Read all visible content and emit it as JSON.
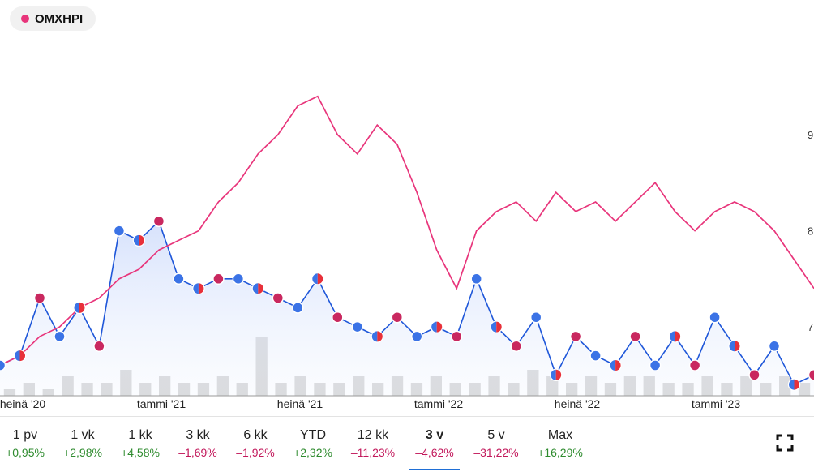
{
  "legend": {
    "label": "OMXHPI",
    "color": "#e8357b"
  },
  "colors": {
    "index_line": "#e8357b",
    "stock_line": "#1f57d9",
    "volume": "#d4d4d4",
    "dot_blue": "#3b73e6",
    "dot_red": "#e8303a",
    "dot_crimson": "#c9285f",
    "positive": "#2e8b2e",
    "negative": "#c2185b",
    "active_tab": "#1f6fd6"
  },
  "icons": {
    "fullscreen": "fullscreen-icon"
  },
  "chart_data": {
    "type": "line",
    "x_ticks": [
      "heinä '20",
      "tammi '21",
      "heinä '21",
      "tammi '22",
      "heinä '22",
      "tammi '23"
    ],
    "y_ticks": [
      "9",
      "8",
      "7"
    ],
    "series": [
      {
        "name": "OMXHPI",
        "values": [
          6.6,
          6.7,
          6.9,
          7.0,
          7.2,
          7.3,
          7.5,
          7.6,
          7.8,
          7.9,
          8.0,
          8.3,
          8.5,
          8.8,
          9.0,
          9.3,
          9.4,
          9.0,
          8.8,
          9.1,
          8.9,
          8.4,
          7.8,
          7.4,
          8.0,
          8.2,
          8.3,
          8.1,
          8.4,
          8.2,
          8.3,
          8.1,
          8.3,
          8.5,
          8.2,
          8.0,
          8.2,
          8.3,
          8.2,
          8.0,
          7.7,
          7.4
        ]
      },
      {
        "values": [
          6.6,
          6.7,
          7.3,
          6.9,
          7.2,
          6.8,
          8.0,
          7.9,
          8.1,
          7.5,
          7.4,
          7.5,
          7.5,
          7.4,
          7.3,
          7.2,
          7.5,
          7.1,
          7.0,
          6.9,
          7.1,
          6.9,
          7.0,
          6.9,
          7.5,
          7.0,
          6.8,
          7.1,
          6.5,
          6.9,
          6.7,
          6.6,
          6.9,
          6.6,
          6.9,
          6.6,
          7.1,
          6.8,
          6.5,
          6.8,
          6.4,
          6.5
        ]
      },
      {
        "values": [
          1,
          2,
          1,
          3,
          2,
          2,
          4,
          2,
          3,
          2,
          2,
          3,
          2,
          9,
          2,
          3,
          2,
          2,
          3,
          2,
          3,
          2,
          3,
          2,
          2,
          3,
          2,
          4,
          3,
          2,
          3,
          2,
          3,
          3,
          2,
          2,
          3,
          2,
          3,
          2,
          3,
          2
        ]
      }
    ]
  },
  "ranges": [
    {
      "label": "1 pv",
      "change": "+0,95%",
      "trend": "up"
    },
    {
      "label": "1 vk",
      "change": "+2,98%",
      "trend": "up"
    },
    {
      "label": "1 kk",
      "change": "+4,58%",
      "trend": "up"
    },
    {
      "label": "3 kk",
      "change": "–1,69%",
      "trend": "down"
    },
    {
      "label": "6 kk",
      "change": "–1,92%",
      "trend": "down"
    },
    {
      "label": "YTD",
      "change": "+2,32%",
      "trend": "up"
    },
    {
      "label": "12 kk",
      "change": "–11,23%",
      "trend": "down"
    },
    {
      "label": "3 v",
      "change": "–4,62%",
      "trend": "down",
      "active": true
    },
    {
      "label": "5 v",
      "change": "–31,22%",
      "trend": "down"
    },
    {
      "label": "Max",
      "change": "+16,29%",
      "trend": "up"
    }
  ]
}
